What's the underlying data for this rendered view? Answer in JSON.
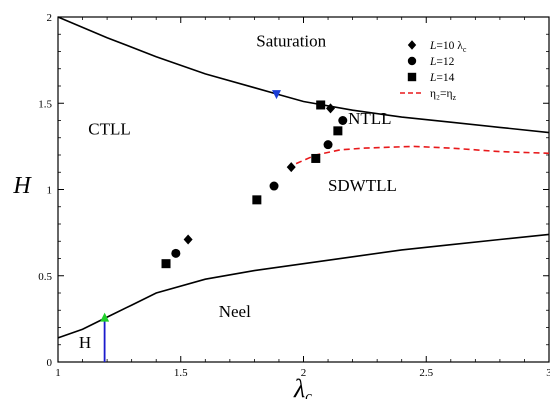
{
  "chart_data": {
    "type": "scatter",
    "xlabel": "λ",
    "xlabel_sub": "c",
    "ylabel": "H",
    "xlim": [
      1,
      3
    ],
    "ylim": [
      0,
      2
    ],
    "xticks": [
      {
        "v": 1,
        "label": "1"
      },
      {
        "v": 1.5,
        "label": "1.5"
      },
      {
        "v": 2,
        "label": "2"
      },
      {
        "v": 2.5,
        "label": "2.5"
      },
      {
        "v": 3,
        "label": "3"
      }
    ],
    "yticks": [
      {
        "v": 0,
        "label": "0"
      },
      {
        "v": 0.5,
        "label": "0.5"
      },
      {
        "v": 1,
        "label": "1"
      },
      {
        "v": 1.5,
        "label": "1.5"
      },
      {
        "v": 2,
        "label": "2"
      }
    ],
    "legend": {
      "placement": "top-right",
      "entries": [
        {
          "series": "L10",
          "marker": "diamond",
          "label_italic": "L",
          "label_rest": "=10 λ",
          "label_sub": "c"
        },
        {
          "series": "L12",
          "marker": "circle",
          "label_italic": "L",
          "label_rest": "=12",
          "label_sub": ""
        },
        {
          "series": "L14",
          "marker": "square",
          "label_italic": "L",
          "label_rest": "=14",
          "label_sub": ""
        },
        {
          "series": "eta",
          "marker": "dashed-line",
          "label_italic": "",
          "label_rest": "η₂=η",
          "label_sub": "z"
        }
      ]
    },
    "series": [
      {
        "id": "L10",
        "marker": "diamond",
        "color": "#000000",
        "x": [
          1.53,
          1.95,
          2.11
        ],
        "y": [
          0.71,
          1.13,
          1.47
        ]
      },
      {
        "id": "L12",
        "marker": "circle",
        "color": "#000000",
        "x": [
          1.48,
          1.88,
          2.1,
          2.16
        ],
        "y": [
          0.63,
          1.02,
          1.26,
          1.4
        ]
      },
      {
        "id": "L14",
        "marker": "square",
        "color": "#000000",
        "x": [
          1.44,
          1.81,
          2.05,
          2.07,
          2.14
        ],
        "y": [
          0.57,
          0.94,
          1.18,
          1.49,
          1.34
        ]
      }
    ],
    "lines": [
      {
        "id": "upper-boundary",
        "style": "solid",
        "color": "#000000",
        "x": [
          1.0,
          1.2,
          1.4,
          1.6,
          1.8,
          1.9,
          2.0,
          2.2,
          2.4,
          2.6,
          2.8,
          3.0
        ],
        "y": [
          2.0,
          1.88,
          1.77,
          1.67,
          1.59,
          1.55,
          1.51,
          1.46,
          1.42,
          1.39,
          1.36,
          1.33
        ]
      },
      {
        "id": "lower-boundary",
        "style": "solid",
        "color": "#000000",
        "x": [
          1.0,
          1.1,
          1.2,
          1.3,
          1.4,
          1.6,
          1.8,
          2.0,
          2.2,
          2.4,
          2.6,
          2.8,
          3.0
        ],
        "y": [
          0.14,
          0.19,
          0.26,
          0.33,
          0.4,
          0.48,
          0.53,
          0.57,
          0.61,
          0.65,
          0.68,
          0.71,
          0.74
        ]
      },
      {
        "id": "eta-line",
        "style": "dashed",
        "color": "#e8191b",
        "x": [
          1.97,
          2.05,
          2.15,
          2.25,
          2.35,
          2.45,
          2.6,
          2.8,
          3.0
        ],
        "y": [
          1.15,
          1.2,
          1.23,
          1.24,
          1.245,
          1.25,
          1.24,
          1.22,
          1.21
        ]
      },
      {
        "id": "vertical-marker",
        "style": "solid",
        "color": "#1a1acc",
        "x": [
          1.19,
          1.19
        ],
        "y": [
          0,
          0.26
        ]
      }
    ],
    "special_points": [
      {
        "id": "blue-triangle",
        "marker": "triangle-down",
        "color": "#1a3cd6",
        "x": 1.89,
        "y": 1.55
      },
      {
        "id": "green-triangle",
        "marker": "triangle-up",
        "color": "#1fcf2a",
        "x": 1.19,
        "y": 0.26
      }
    ],
    "annotations": [
      {
        "text": "Saturation",
        "x": 1.95,
        "y": 1.83
      },
      {
        "text": "CTLL",
        "x": 1.21,
        "y": 1.32
      },
      {
        "text": "NTLL",
        "x": 2.27,
        "y": 1.38
      },
      {
        "text": "SDWTLL",
        "x": 2.24,
        "y": 0.99
      },
      {
        "text": "Neel",
        "x": 1.72,
        "y": 0.26
      },
      {
        "text": "H",
        "x": 1.11,
        "y": 0.08
      }
    ],
    "grid": false
  }
}
